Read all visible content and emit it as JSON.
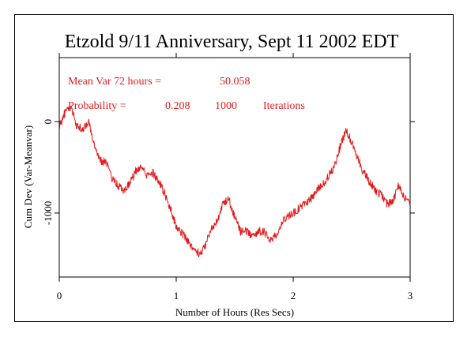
{
  "chart_data": {
    "type": "line",
    "title": "Etzold 9/11 Anniversary, Sept 11 2002 EDT",
    "xlabel": "Number of Hours (Res Secs)",
    "ylabel": "Cum Dev (Var-Meanvar)",
    "xlim": [
      0,
      3
    ],
    "ylim": [
      -1700,
      700
    ],
    "x_ticks": [
      0,
      1,
      2,
      3
    ],
    "x_tick_labels": [
      "0",
      "1",
      "2",
      "3"
    ],
    "y_ticks": [
      0,
      -1000
    ],
    "y_tick_labels": [
      "0",
      "-1000"
    ],
    "grid": false,
    "series": [
      {
        "color": "#e31a1c",
        "x": [
          0,
          0.05,
          0.1,
          0.15,
          0.2,
          0.25,
          0.3,
          0.35,
          0.4,
          0.45,
          0.5,
          0.55,
          0.6,
          0.65,
          0.7,
          0.75,
          0.8,
          0.85,
          0.9,
          0.95,
          1.0,
          1.05,
          1.1,
          1.15,
          1.2,
          1.25,
          1.3,
          1.35,
          1.4,
          1.45,
          1.5,
          1.55,
          1.6,
          1.65,
          1.7,
          1.75,
          1.8,
          1.85,
          1.9,
          1.95,
          2.0,
          2.05,
          2.1,
          2.15,
          2.2,
          2.25,
          2.3,
          2.35,
          2.4,
          2.45,
          2.5,
          2.55,
          2.6,
          2.65,
          2.7,
          2.75,
          2.8,
          2.85,
          2.9,
          2.95,
          3.0
        ],
        "y": [
          -50,
          100,
          150,
          -50,
          -80,
          0,
          -250,
          -420,
          -450,
          -620,
          -700,
          -760,
          -680,
          -550,
          -480,
          -600,
          -560,
          -650,
          -780,
          -950,
          -1150,
          -1220,
          -1300,
          -1400,
          -1450,
          -1350,
          -1150,
          -1100,
          -900,
          -850,
          -1050,
          -1200,
          -1200,
          -1250,
          -1200,
          -1200,
          -1300,
          -1250,
          -1100,
          -1050,
          -1000,
          -950,
          -900,
          -850,
          -750,
          -700,
          -600,
          -500,
          -280,
          -100,
          -220,
          -400,
          -550,
          -650,
          -750,
          -800,
          -900,
          -880,
          -700,
          -820,
          -900
        ]
      }
    ],
    "annotations": [
      {
        "label": "Mean Var 72 hours =",
        "value": "50.058"
      },
      {
        "label": "Probability =",
        "value": "0.208",
        "value2": "1000",
        "value3": "Iterations"
      }
    ]
  }
}
